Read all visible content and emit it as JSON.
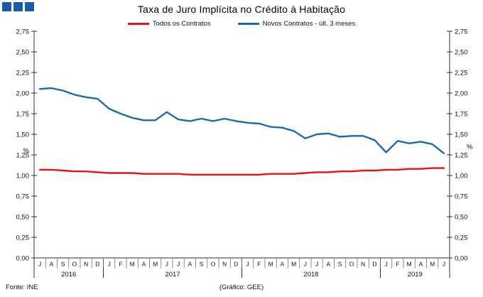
{
  "header": {
    "title": "Taxa de Juro Implícita no Crédito à Habitação",
    "logo": {
      "name": "ine-logo",
      "squares": 3,
      "color": "#175ea4"
    }
  },
  "legend": [
    {
      "label": "Todos os Contratos",
      "color": "#e81414"
    },
    {
      "label": "Novos Contratos - últ. 3 meses",
      "color": "#1a6ab4"
    }
  ],
  "footer": {
    "source": "Fonte: INE",
    "credit": "(Gráfico: GEE)"
  },
  "chart_data": {
    "type": "line",
    "title": "Taxa de Juro Implícita no Crédito à Habitação",
    "ylabel": "%",
    "ylabel_right": "%",
    "ylim": [
      0,
      2.75
    ],
    "ytick_step": 0.25,
    "decimal_separator": ",",
    "grid": false,
    "legend_position": "top-center",
    "x_groups": [
      {
        "year": "2016",
        "months": [
          "J",
          "A",
          "S",
          "O",
          "N",
          "D"
        ]
      },
      {
        "year": "2017",
        "months": [
          "J",
          "F",
          "M",
          "A",
          "M",
          "J",
          "J",
          "A",
          "S",
          "O",
          "N",
          "D"
        ]
      },
      {
        "year": "2018",
        "months": [
          "J",
          "F",
          "M",
          "A",
          "M",
          "J",
          "J",
          "A",
          "S",
          "O",
          "N",
          "D"
        ]
      },
      {
        "year": "2019",
        "months": [
          "J",
          "F",
          "M",
          "A",
          "M",
          "J"
        ]
      }
    ],
    "series": [
      {
        "name": "Todos os Contratos",
        "color": "#e81414",
        "values": [
          1.07,
          1.07,
          1.06,
          1.05,
          1.05,
          1.04,
          1.03,
          1.03,
          1.03,
          1.02,
          1.02,
          1.02,
          1.02,
          1.01,
          1.01,
          1.01,
          1.01,
          1.01,
          1.01,
          1.01,
          1.02,
          1.02,
          1.02,
          1.03,
          1.04,
          1.04,
          1.05,
          1.05,
          1.06,
          1.06,
          1.07,
          1.07,
          1.08,
          1.08,
          1.09,
          1.09
        ]
      },
      {
        "name": "Novos Contratos - últ. 3 meses",
        "color": "#1a6ab4",
        "values": [
          2.05,
          2.06,
          2.03,
          1.98,
          1.95,
          1.93,
          1.81,
          1.75,
          1.7,
          1.67,
          1.67,
          1.77,
          1.68,
          1.66,
          1.69,
          1.66,
          1.69,
          1.66,
          1.64,
          1.63,
          1.59,
          1.58,
          1.54,
          1.45,
          1.5,
          1.51,
          1.47,
          1.48,
          1.48,
          1.43,
          1.28,
          1.42,
          1.39,
          1.41,
          1.38,
          1.27
        ]
      }
    ]
  }
}
